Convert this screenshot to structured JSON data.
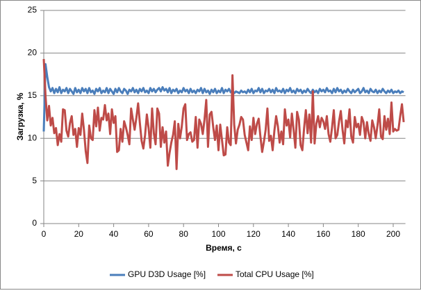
{
  "chart_data": {
    "type": "line",
    "xlabel": "Время, с",
    "ylabel": "Загрузка, %",
    "xlim": [
      0,
      207
    ],
    "xticks": [
      0,
      20,
      40,
      60,
      80,
      100,
      120,
      140,
      160,
      180,
      200
    ],
    "ylim": [
      0,
      25
    ],
    "yticks": [
      0,
      5,
      10,
      15,
      20,
      25
    ],
    "grid": true,
    "legend": "bottom",
    "x": [
      0,
      1,
      2,
      3,
      4,
      5,
      6,
      7,
      8,
      9,
      10,
      11,
      12,
      13,
      14,
      15,
      16,
      17,
      18,
      19,
      20,
      21,
      22,
      23,
      24,
      25,
      26,
      27,
      28,
      29,
      30,
      31,
      32,
      33,
      34,
      35,
      36,
      37,
      38,
      39,
      40,
      41,
      42,
      43,
      44,
      45,
      46,
      47,
      48,
      49,
      50,
      51,
      52,
      53,
      54,
      55,
      56,
      57,
      58,
      59,
      60,
      61,
      62,
      63,
      64,
      65,
      66,
      67,
      68,
      69,
      70,
      71,
      72,
      73,
      74,
      75,
      76,
      77,
      78,
      79,
      80,
      81,
      82,
      83,
      84,
      85,
      86,
      87,
      88,
      89,
      90,
      91,
      92,
      93,
      94,
      95,
      96,
      97,
      98,
      99,
      100,
      101,
      102,
      103,
      104,
      105,
      106,
      107,
      108,
      109,
      110,
      111,
      112,
      113,
      114,
      115,
      116,
      117,
      118,
      119,
      120,
      121,
      122,
      123,
      124,
      125,
      126,
      127,
      128,
      129,
      130,
      131,
      132,
      133,
      134,
      135,
      136,
      137,
      138,
      139,
      140,
      141,
      142,
      143,
      144,
      145,
      146,
      147,
      148,
      149,
      150,
      151,
      152,
      153,
      154,
      155,
      156,
      157,
      158,
      159,
      160,
      161,
      162,
      163,
      164,
      165,
      166,
      167,
      168,
      169,
      170,
      171,
      172,
      173,
      174,
      175,
      176,
      177,
      178,
      179,
      180,
      181,
      182,
      183,
      184,
      185,
      186,
      187,
      188,
      189,
      190,
      191,
      192,
      193,
      194,
      195,
      196,
      197,
      198,
      199,
      200,
      201,
      202,
      203,
      204,
      205,
      206
    ],
    "series": [
      {
        "name": "GPU D3D Usage [%]",
        "color": "#4a7ebb",
        "values": [
          10.8,
          18.7,
          17.2,
          16.0,
          15.5,
          15.9,
          15.3,
          15.8,
          15.4,
          16.0,
          15.3,
          15.7,
          15.5,
          15.9,
          15.3,
          15.8,
          15.5,
          15.2,
          15.9,
          15.4,
          15.7,
          15.3,
          15.9,
          15.5,
          15.8,
          15.3,
          15.9,
          15.4,
          15.6,
          15.2,
          15.8,
          15.5,
          15.9,
          15.3,
          15.6,
          15.4,
          15.9,
          15.3,
          15.8,
          15.5,
          15.2,
          15.8,
          15.4,
          15.9,
          15.5,
          15.3,
          15.8,
          15.6,
          15.2,
          15.7,
          15.5,
          15.9,
          15.4,
          15.7,
          15.3,
          15.8,
          15.5,
          15.9,
          15.4,
          15.6,
          15.3,
          15.9,
          15.5,
          15.8,
          15.4,
          15.7,
          15.9,
          15.5,
          16.0,
          15.6,
          15.8,
          15.4,
          15.9,
          15.3,
          15.7,
          15.5,
          15.8,
          15.3,
          15.6,
          15.4,
          15.9,
          15.5,
          15.7,
          15.3,
          15.8,
          15.4,
          15.6,
          15.3,
          15.7,
          15.5,
          15.9,
          15.3,
          15.8,
          15.4,
          15.6,
          15.2,
          15.7,
          15.4,
          15.8,
          15.3,
          15.6,
          15.4,
          15.9,
          15.3,
          15.7,
          15.5,
          15.8,
          15.4,
          15.6,
          15.3,
          15.5,
          15.4,
          15.3,
          15.6,
          15.4,
          15.5,
          15.3,
          15.7,
          15.4,
          15.8,
          15.3,
          15.6,
          15.5,
          15.9,
          15.4,
          15.8,
          15.3,
          15.6,
          15.5,
          15.8,
          15.4,
          15.7,
          15.3,
          15.9,
          15.5,
          15.6,
          15.4,
          15.8,
          15.3,
          15.7,
          15.5,
          15.9,
          15.4,
          15.6,
          15.3,
          15.8,
          15.5,
          15.7,
          15.3,
          15.6,
          15.4,
          15.8,
          15.5,
          15.3,
          15.7,
          15.4,
          15.6,
          15.3,
          15.8,
          15.5,
          15.7,
          15.4,
          15.9,
          15.5,
          15.6,
          15.3,
          15.8,
          15.4,
          15.9,
          15.5,
          15.7,
          15.3,
          15.6,
          15.4,
          15.8,
          15.5,
          15.3,
          15.7,
          15.4,
          15.6,
          15.8,
          15.3,
          15.5,
          15.9,
          15.4,
          15.6,
          15.3,
          15.8,
          15.5,
          15.4,
          15.7,
          15.3,
          15.6,
          15.4,
          15.8,
          15.5,
          15.3,
          15.6,
          15.4,
          15.7,
          15.3,
          15.5,
          15.4,
          15.6,
          15.3,
          15.5,
          15.4
        ]
      },
      {
        "name": "Total CPU Usage [%]",
        "color": "#be4b48",
        "values": [
          19.3,
          15.0,
          12.1,
          13.8,
          11.5,
          12.4,
          10.6,
          11.2,
          9.2,
          10.5,
          9.6,
          13.4,
          13.3,
          10.9,
          10.2,
          11.8,
          12.6,
          10.4,
          11.1,
          9.0,
          11.2,
          10.4,
          12.9,
          11.0,
          8.5,
          7.1,
          11.5,
          10.0,
          9.8,
          13.3,
          11.4,
          13.6,
          10.9,
          12.4,
          12.2,
          13.9,
          12.1,
          12.9,
          10.5,
          13.4,
          11.8,
          12.6,
          8.4,
          8.6,
          11.1,
          9.6,
          12.0,
          11.3,
          10.4,
          9.3,
          13.5,
          12.2,
          11.0,
          12.4,
          14.1,
          11.8,
          9.7,
          8.8,
          10.4,
          12.8,
          11.2,
          8.9,
          13.5,
          10.6,
          9.3,
          13.5,
          12.9,
          9.0,
          11.3,
          9.5,
          10.8,
          6.8,
          8.3,
          9.5,
          10.4,
          12.0,
          6.4,
          11.7,
          10.0,
          11.4,
          13.5,
          14.0,
          9.8,
          10.5,
          10.7,
          9.6,
          9.8,
          12.5,
          8.9,
          12.2,
          11.7,
          10.5,
          12.2,
          14.5,
          9.0,
          12.8,
          13.1,
          11.3,
          9.8,
          11.5,
          8.6,
          11.6,
          9.8,
          8.0,
          8.1,
          11.3,
          9.5,
          9.2,
          17.4,
          11.6,
          9.4,
          11.0,
          11.6,
          12.5,
          12.2,
          10.4,
          9.5,
          8.6,
          11.4,
          9.8,
          12.4,
          10.5,
          11.7,
          12.3,
          10.2,
          8.4,
          9.6,
          11.0,
          13.5,
          9.7,
          10.3,
          8.6,
          10.9,
          12.6,
          11.4,
          9.5,
          10.8,
          9.3,
          13.4,
          11.5,
          12.2,
          10.1,
          12.9,
          11.0,
          8.9,
          13.1,
          12.2,
          9.2,
          8.6,
          11.2,
          13.3,
          10.6,
          12.8,
          9.5,
          15.5,
          9.4,
          11.7,
          12.6,
          11.3,
          12.4,
          12.0,
          11.1,
          12.6,
          10.5,
          9.6,
          11.3,
          13.3,
          10.0,
          10.4,
          12.0,
          13.2,
          11.0,
          9.4,
          12.1,
          11.3,
          13.4,
          10.2,
          9.5,
          12.5,
          11.3,
          11.7,
          10.4,
          12.5,
          11.9,
          10.0,
          11.9,
          10.5,
          9.7,
          12.1,
          11.3,
          10.0,
          11.5,
          13.4,
          10.2,
          9.9,
          12.6,
          11.0,
          12.3,
          10.5,
          14.2,
          10.8,
          11.1,
          10.9,
          11.0,
          12.6,
          14.0,
          11.9
        ]
      }
    ]
  }
}
